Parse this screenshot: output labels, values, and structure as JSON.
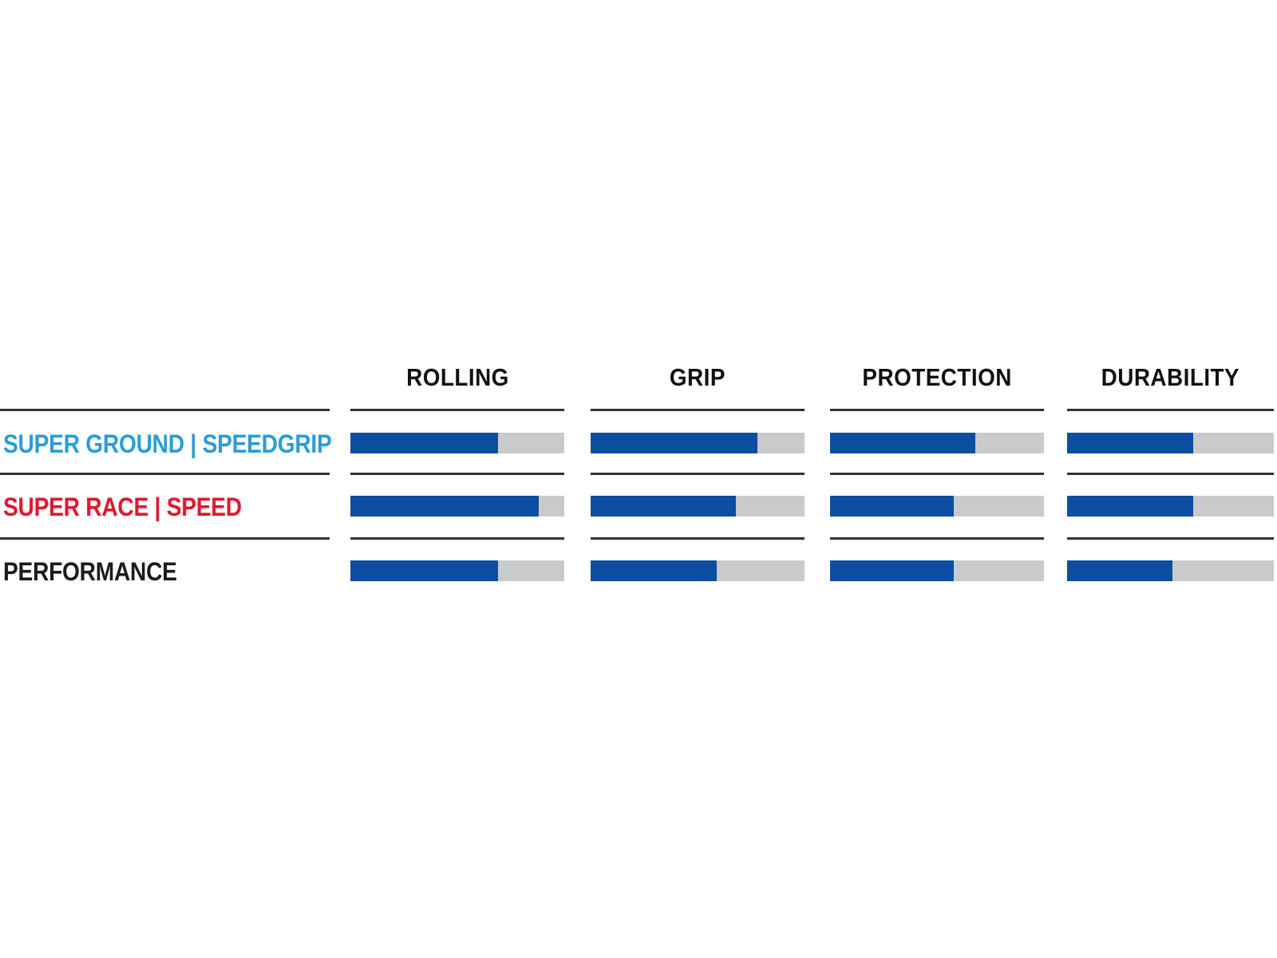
{
  "colors": {
    "background": "#ffffff",
    "bar_fill": "#0d4ea0",
    "bar_track": "#c9cacc",
    "divider": "#333333",
    "header_text": "#111111",
    "label_super_ground": "#2b9cd8",
    "label_super_race": "#e0182f",
    "label_performance": "#1c1c1c"
  },
  "columns": [
    {
      "label": "ROLLING"
    },
    {
      "label": "GRIP"
    },
    {
      "label": "PROTECTION"
    },
    {
      "label": "DURABILITY"
    }
  ],
  "rows": [
    {
      "label": "SUPER GROUND | SPEEDGRIP",
      "ratings": {
        "rolling": 69,
        "grip": 78,
        "protection": 68,
        "durability": 61
      }
    },
    {
      "label": "SUPER RACE | SPEED",
      "ratings": {
        "rolling": 88,
        "grip": 68,
        "protection": 58,
        "durability": 61
      }
    },
    {
      "label": "PERFORMANCE",
      "ratings": {
        "rolling": 69,
        "grip": 59,
        "protection": 58,
        "durability": 51
      }
    }
  ],
  "chart_data": {
    "type": "bar",
    "orientation": "horizontal",
    "title": "",
    "categories": [
      "ROLLING",
      "GRIP",
      "PROTECTION",
      "DURABILITY"
    ],
    "series": [
      {
        "name": "SUPER GROUND | SPEEDGRIP",
        "values": [
          69,
          78,
          68,
          61
        ]
      },
      {
        "name": "SUPER RACE | SPEED",
        "values": [
          88,
          68,
          58,
          61
        ]
      },
      {
        "name": "PERFORMANCE",
        "values": [
          69,
          59,
          58,
          51
        ]
      }
    ],
    "value_range": [
      0,
      100
    ],
    "units": "percent of bar track filled",
    "grid": false,
    "legend_position": "row labels on left",
    "notes": "Tire compound/casing comparison matrix; each cell is a single horizontal bar (blue fill on gray track)."
  }
}
